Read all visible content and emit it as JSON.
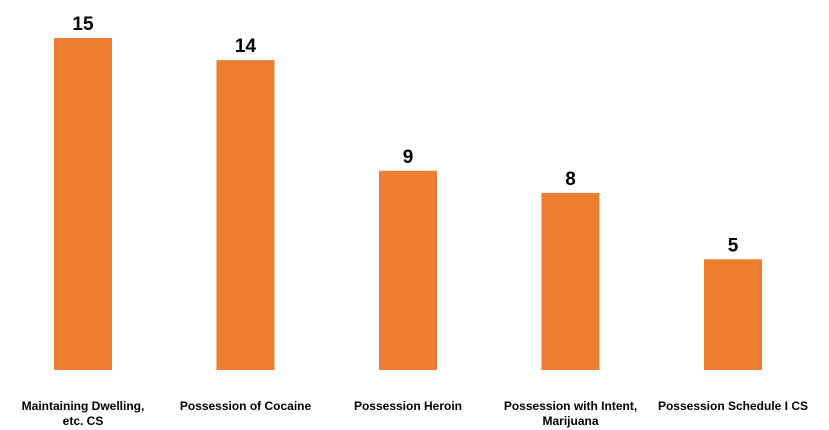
{
  "chart_data": {
    "type": "bar",
    "categories": [
      [
        "Maintaining Dwelling,",
        "etc. CS"
      ],
      [
        "Possession of Cocaine"
      ],
      [
        "Possession Heroin"
      ],
      [
        "Possession with Intent,",
        "Marijuana"
      ],
      [
        "Possession Schedule I CS"
      ]
    ],
    "values": [
      15,
      14,
      9,
      8,
      5
    ],
    "title": "",
    "xlabel": "",
    "ylabel": "",
    "ylim": [
      0,
      15
    ],
    "grid": false,
    "legend": "none",
    "bar_color": "#ED7D31"
  }
}
